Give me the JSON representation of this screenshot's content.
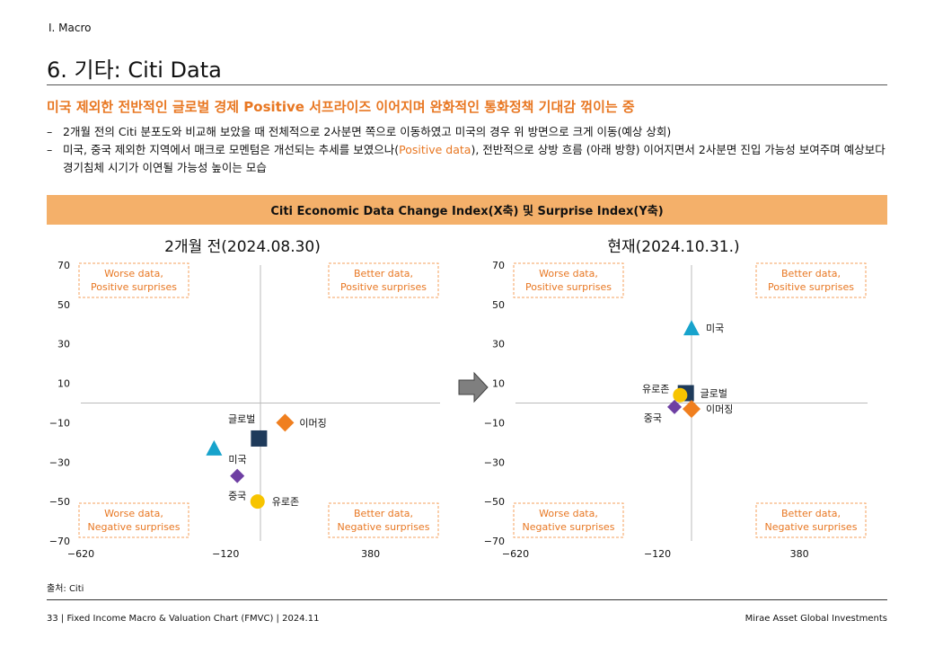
{
  "header": {
    "section": "I. Macro",
    "title": "6. 기타: Citi Data"
  },
  "headline": "미국 제외한 전반적인 글로벌 경제 Positive 서프라이즈 이어지며 완화적인 통화정책 기대감 꺾이는 중",
  "bullets": [
    {
      "dash": "–",
      "text": "2개월 전의 Citi 분포도와 비교해 보았을 때 전체적으로 2사분면 쪽으로 이동하였고 미국의 경우 위 방면으로 크게 이동(예상 상회)"
    },
    {
      "dash": "–",
      "text_before": "미국, 중국 제외한 지역에서 매크로 모멘텀은 개선되는 추세를 보였으나(",
      "text_highlight": "Positive data",
      "text_after": "), 전반적으로 상방 흐름 (아래 방향) 이어지면서 2사분면 진입 가능성 보여주며 예상보다 경기침체 시기가 이연될 가능성 높이는 모습"
    }
  ],
  "banner": "Citi Economic Data Change Index(X축) 및 Surprise Index(Y축)",
  "chart_data": [
    {
      "type": "scatter",
      "title": "2개월 전(2024.08.30)",
      "xlim": [
        -620,
        620
      ],
      "ylim": [
        -70,
        70
      ],
      "xticks": [
        -620,
        -120,
        380
      ],
      "yticks": [
        70,
        50,
        30,
        10,
        -10,
        -30,
        -50,
        -70
      ],
      "quadrant_labels": [
        {
          "position": "top-left",
          "line1": "Worse data,",
          "line2": "Positive surprises"
        },
        {
          "position": "top-right",
          "line1": "Better data,",
          "line2": "Positive surprises"
        },
        {
          "position": "bottom-left",
          "line1": "Worse data,",
          "line2": "Negative surprises"
        },
        {
          "position": "bottom-right",
          "line1": "Better data,",
          "line2": "Negative surprises"
        }
      ],
      "points": [
        {
          "name": "글로벌",
          "x": -5,
          "y": -18,
          "marker": "square",
          "color": "#1f3b5b",
          "label_pos": "above-left"
        },
        {
          "name": "이머징",
          "x": 85,
          "y": -10,
          "marker": "diamond",
          "color": "#f07f1f",
          "label_pos": "right"
        },
        {
          "name": "미국",
          "x": -160,
          "y": -23,
          "marker": "triangle",
          "color": "#17a3cc",
          "label_pos": "below-right"
        },
        {
          "name": "중국",
          "x": -80,
          "y": -37,
          "marker": "diamond",
          "color": "#6e3fa3",
          "label_pos": "below"
        },
        {
          "name": "유로존",
          "x": -10,
          "y": -50,
          "marker": "circle",
          "color": "#f7c400",
          "label_pos": "right"
        }
      ]
    },
    {
      "type": "scatter",
      "title": "현재(2024.10.31.)",
      "xlim": [
        -620,
        620
      ],
      "ylim": [
        -70,
        70
      ],
      "xticks": [
        -620,
        -120,
        380
      ],
      "yticks": [
        70,
        50,
        30,
        10,
        -10,
        -30,
        -50,
        -70
      ],
      "quadrant_labels": [
        {
          "position": "top-left",
          "line1": "Worse data,",
          "line2": "Positive surprises"
        },
        {
          "position": "top-right",
          "line1": "Better data,",
          "line2": "Positive surprises"
        },
        {
          "position": "bottom-left",
          "line1": "Worse data,",
          "line2": "Negative surprises"
        },
        {
          "position": "bottom-right",
          "line1": "Better data,",
          "line2": "Negative surprises"
        }
      ],
      "points": [
        {
          "name": "미국",
          "x": 0,
          "y": 38,
          "marker": "triangle",
          "color": "#17a3cc",
          "label_pos": "right"
        },
        {
          "name": "글로벌",
          "x": -20,
          "y": 5,
          "marker": "square",
          "color": "#1f3b5b",
          "label_pos": "right"
        },
        {
          "name": "유로존",
          "x": -40,
          "y": 4,
          "marker": "circle",
          "color": "#f7c400",
          "label_pos": "left"
        },
        {
          "name": "이머징",
          "x": 0,
          "y": -3,
          "marker": "diamond",
          "color": "#f07f1f",
          "label_pos": "right"
        },
        {
          "name": "중국",
          "x": -60,
          "y": -2,
          "marker": "diamond",
          "color": "#6e3fa3",
          "label_pos": "below-left"
        }
      ]
    }
  ],
  "source": "출처: Citi",
  "footer": {
    "left": "33 | Fixed Income Macro & Valuation Chart (FMVC) | 2024.11",
    "right": "Mirae Asset Global Investments"
  }
}
